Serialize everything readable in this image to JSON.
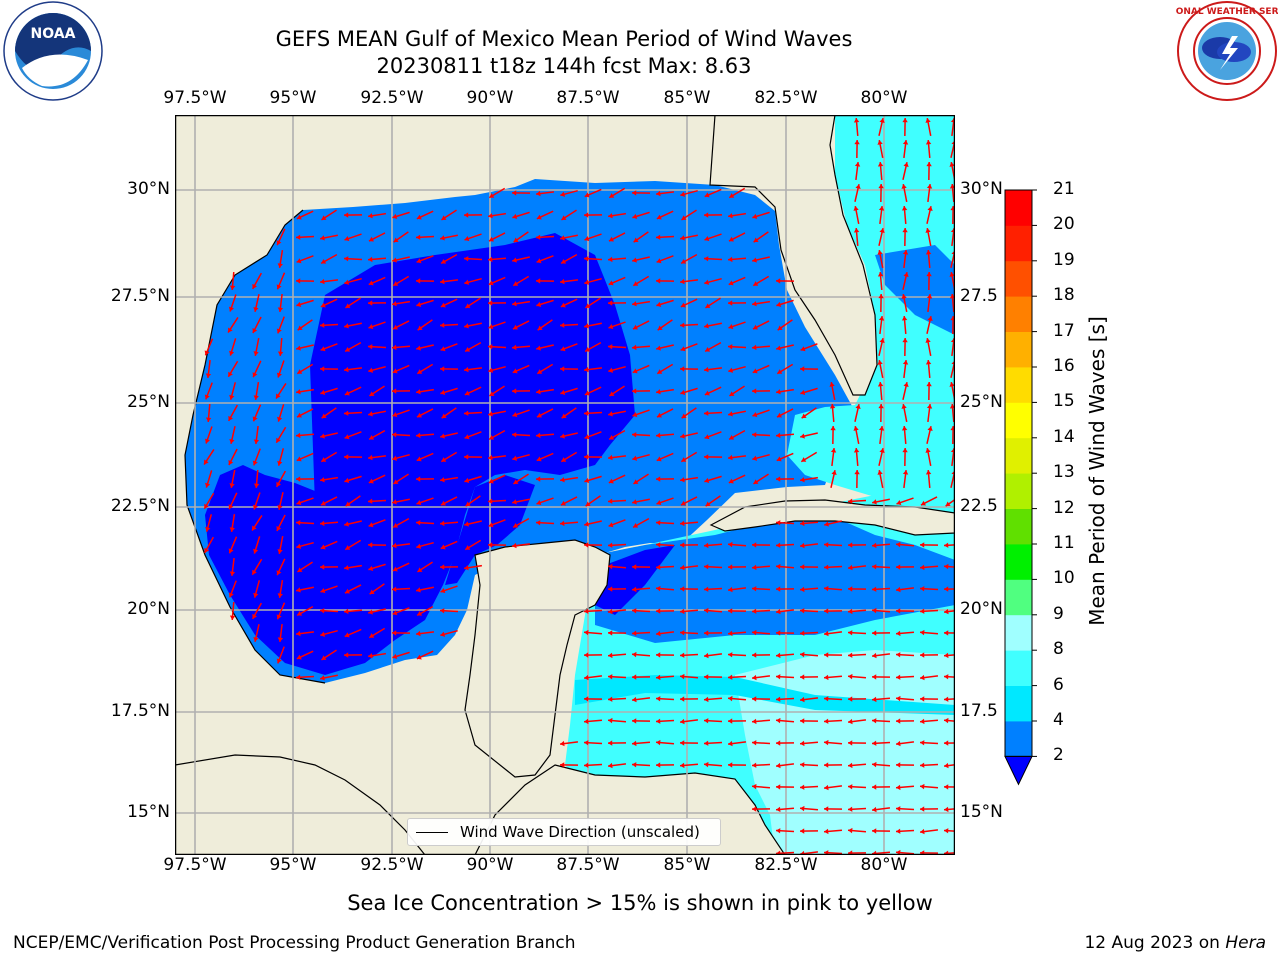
{
  "header": {
    "title_line1": "GEFS MEAN Gulf of Mexico Mean Period of Wind Waves",
    "title_line2": "20230811 t18z 144h fcst   Max: 8.63"
  },
  "logos": {
    "left": "NOAA",
    "right": "NATIONAL WEATHER SERVICE"
  },
  "map": {
    "lon_labels": [
      "97.5°W",
      "95°W",
      "92.5°W",
      "90°W",
      "87.5°W",
      "85°W",
      "82.5°W",
      "80°W"
    ],
    "lat_labels": [
      "30°N",
      "27.5°N",
      "25°N",
      "22.5°N",
      "20°N",
      "17.5°N",
      "15°N"
    ],
    "lat_labels_right": [
      "30°N",
      "27.5",
      "25°N",
      "22.5",
      "20°N",
      "17.5",
      "15°N"
    ],
    "legend_label": "Wind Wave Direction (unscaled)",
    "colors": {
      "land": "#efedda",
      "arrow": "#ff0000",
      "grid": "#b0b0b0"
    }
  },
  "colorbar": {
    "label": "Mean Period of Wind Waves [s]",
    "ticks": [
      "21",
      "20",
      "19",
      "18",
      "17",
      "16",
      "15",
      "14",
      "13",
      "12",
      "11",
      "10",
      "9",
      "8",
      "6",
      "4",
      "2"
    ],
    "colors": [
      "#0000ff",
      "#0080ff",
      "#00e8ff",
      "#40ffff",
      "#a0ffff",
      "#50ff80",
      "#00f000",
      "#60e000",
      "#b0f000",
      "#e0f000",
      "#ffff00",
      "#ffdc00",
      "#ffb000",
      "#ff8000",
      "#ff5000",
      "#ff2000",
      "#ff0000"
    ]
  },
  "note": "Sea Ice Concentration > 15% is shown in pink to yellow",
  "footer": {
    "left": "NCEP/EMC/Verification Post Processing Product Generation Branch",
    "right_date": "12 Aug 2023 on ",
    "right_host": "Hera"
  }
}
